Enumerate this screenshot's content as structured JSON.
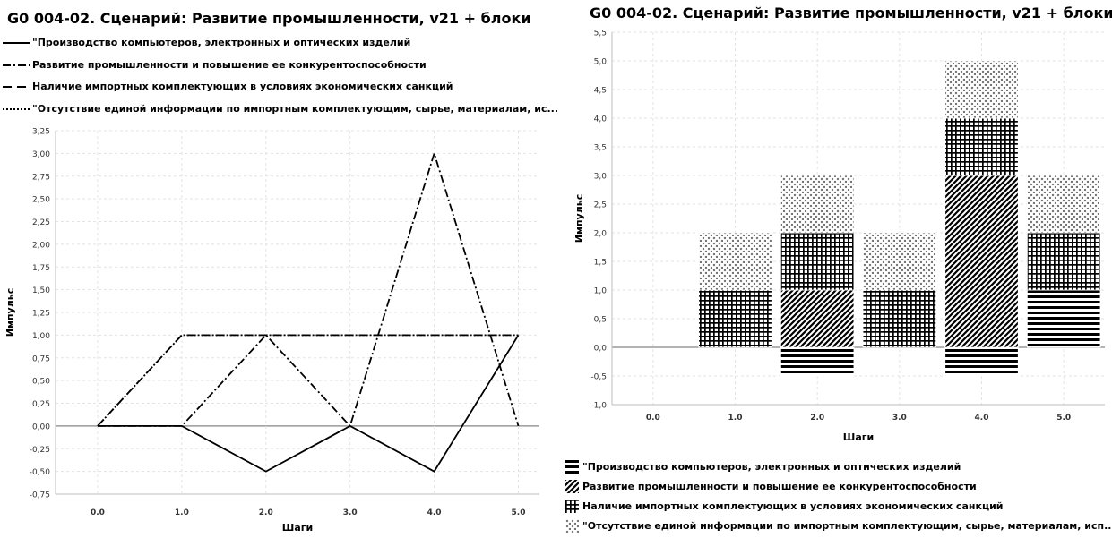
{
  "chart_data": [
    {
      "type": "line",
      "title": "G0 004-02. Сценарий: Развитие промышленности,  v21 + блоки",
      "xlabel": "Шаги",
      "ylabel": "Импульс",
      "x": [
        0,
        1,
        2,
        3,
        4,
        5
      ],
      "x_tick_labels": [
        "0.0",
        "1.0",
        "2.0",
        "3.0",
        "4.0",
        "5.0"
      ],
      "y_tick_labels": [
        "-0,75",
        "-0,50",
        "-0,25",
        "0,00",
        "0,25",
        "0,50",
        "0,75",
        "1,00",
        "1,25",
        "1,50",
        "1,75",
        "2,00",
        "2,25",
        "2,50",
        "2,75",
        "3,00",
        "3,25"
      ],
      "ylim": [
        -0.75,
        3.25
      ],
      "grid": true,
      "legend_position": "top",
      "series": [
        {
          "name": "\"Производство компьютеров, электронных и оптических изделий",
          "style": "solid",
          "values": [
            0,
            0,
            -0.5,
            0,
            -0.5,
            1
          ]
        },
        {
          "name": "Развитие промышленности и повышение ее конкурентоспособности",
          "style": "dashdot",
          "values": [
            0,
            0,
            1,
            0,
            3,
            0
          ]
        },
        {
          "name": "Наличие импортных комплектующих в условиях экономических санкций",
          "style": "dashed",
          "values": [
            0,
            1,
            1,
            1,
            1,
            1
          ]
        },
        {
          "name": "\"Отсутствие единой информации по импортным комплектующим, сырье, материалам, ис...",
          "style": "dotted",
          "values": [
            0,
            1,
            1,
            1,
            1,
            1
          ]
        }
      ]
    },
    {
      "type": "bar",
      "stacked": true,
      "title": "G0 004-02. Сценарий: Развитие промышленности,  v21 + блоки",
      "xlabel": "Шаги",
      "ylabel": "Импульс",
      "categories": [
        "0.0",
        "1.0",
        "2.0",
        "3.0",
        "4.0",
        "5.0"
      ],
      "y_tick_labels": [
        "-1,0",
        "-0,5",
        "0,0",
        "0,5",
        "1,0",
        "1,5",
        "2,0",
        "2,5",
        "3,0",
        "3,5",
        "4,0",
        "4,5",
        "5,0",
        "5,5"
      ],
      "ylim": [
        -1.0,
        5.5
      ],
      "grid": true,
      "legend_position": "bottom",
      "series": [
        {
          "name": "\"Производство компьютеров, электронных и оптических изделий",
          "pattern": "horizontal-lines",
          "values": [
            0,
            0,
            -0.5,
            0,
            -0.5,
            1
          ]
        },
        {
          "name": "Развитие промышленности и повышение ее конкурентоспособности",
          "pattern": "diagonal-hatch",
          "values": [
            0,
            0,
            1,
            0,
            3,
            0
          ]
        },
        {
          "name": "Наличие импортных комплектующих в условиях экономических санкций",
          "pattern": "grid",
          "values": [
            0,
            1,
            1,
            1,
            1,
            1
          ]
        },
        {
          "name": "\"Отсутствие единой информации по импортным комплектующим, сырье, материалам, исп...",
          "pattern": "cross-dots",
          "values": [
            0,
            1,
            1,
            1,
            1,
            1
          ]
        }
      ]
    }
  ]
}
